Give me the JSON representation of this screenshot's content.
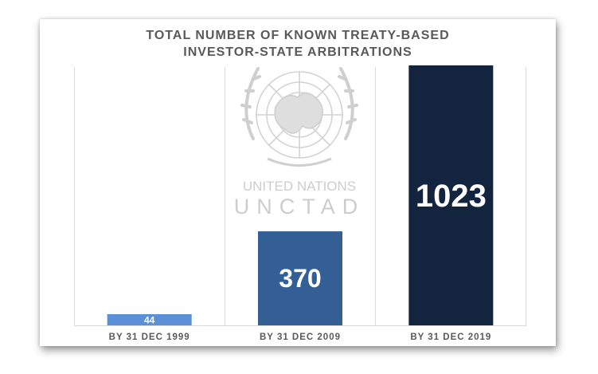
{
  "chart_data": {
    "type": "bar",
    "title_lines": [
      "TOTAL NUMBER OF KNOWN TREATY-BASED",
      "INVESTOR-STATE ARBITRATIONS"
    ],
    "categories": [
      "BY 31 DEC 1999",
      "BY 31 DEC 2009",
      "BY 31 DEC 2019"
    ],
    "values": [
      44,
      370,
      1023
    ],
    "data_labels": [
      "44",
      "370",
      "1023"
    ],
    "bar_colors": [
      "#5b8fd6",
      "#335f94",
      "#13243f"
    ],
    "xlabel": "",
    "ylabel": "",
    "ylim": [
      0,
      1023
    ],
    "grid": false,
    "legend": "none"
  },
  "watermark": {
    "logo_icon": "un-emblem-icon",
    "line1": "UNITED NATIONS",
    "line2": "UNCTAD"
  }
}
